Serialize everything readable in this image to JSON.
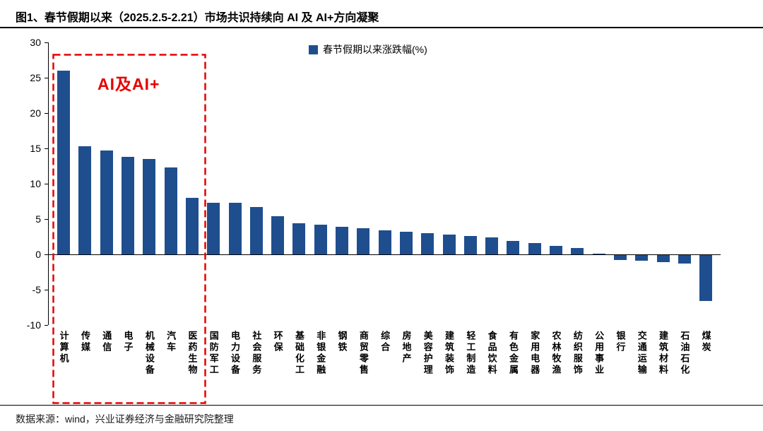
{
  "header": {
    "title": "图1、春节假期以来（2025.2.5-2.21）市场共识持续向 AI 及 AI+方向凝聚"
  },
  "legend": {
    "label": "春节假期以来涨跌幅(%)"
  },
  "annotation": {
    "label": "AI及AI+"
  },
  "footer": {
    "text": "数据来源：wind，兴业证券经济与金融研究院整理"
  },
  "colors": {
    "bar": "#1F4E8F",
    "annotation_red": "#E60000",
    "axis": "#000000"
  },
  "chart_data": {
    "type": "bar",
    "title": "春节假期以来涨跌幅(%)",
    "legend_position": "top-center",
    "grid": false,
    "ylim": [
      -10,
      30
    ],
    "y_ticks": [
      30,
      25,
      20,
      15,
      10,
      5,
      0,
      -5,
      -10
    ],
    "categories": [
      "计算机",
      "传媒",
      "通信",
      "电子",
      "机械设备",
      "汽车",
      "医药生物",
      "国防军工",
      "电力设备",
      "社会服务",
      "环保",
      "基础化工",
      "非银金融",
      "钢铁",
      "商贸零售",
      "综合",
      "房地产",
      "美容护理",
      "建筑装饰",
      "轻工制造",
      "食品饮料",
      "有色金属",
      "家用电器",
      "农林牧渔",
      "纺织服饰",
      "公用事业",
      "银行",
      "交通运输",
      "建筑材料",
      "石油石化",
      "煤炭"
    ],
    "values": [
      26.0,
      15.3,
      14.7,
      13.8,
      13.5,
      12.3,
      8.0,
      7.3,
      7.3,
      6.7,
      5.4,
      4.4,
      4.2,
      3.9,
      3.7,
      3.4,
      3.2,
      3.0,
      2.8,
      2.6,
      2.4,
      1.9,
      1.6,
      1.2,
      0.9,
      0.1,
      -0.7,
      -0.8,
      -1.0,
      -1.2,
      -6.5
    ],
    "highlight_box_categories": [
      "计算机",
      "传媒",
      "通信",
      "电子",
      "机械设备",
      "汽车",
      "医药生物"
    ]
  }
}
